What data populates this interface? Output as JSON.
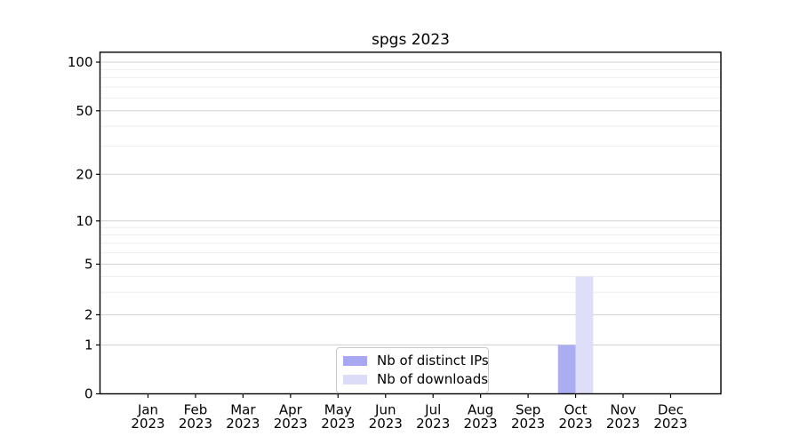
{
  "chart_data": {
    "type": "bar",
    "title": "spgs 2023",
    "categories": [
      "Jan",
      "Feb",
      "Mar",
      "Apr",
      "May",
      "Jun",
      "Jul",
      "Aug",
      "Sep",
      "Oct",
      "Nov",
      "Dec"
    ],
    "x_tick_year": "2023",
    "yticks": [
      0,
      1,
      2,
      5,
      10,
      20,
      50,
      100
    ],
    "ylim": [
      0,
      100
    ],
    "yscale": "symlog-like",
    "grid": "both-horizontal",
    "legend_position": "lower-center-inside",
    "series": [
      {
        "name": "Nb of distinct IPs",
        "color": "#a8a8f2",
        "values": [
          0,
          0,
          0,
          0,
          0,
          0,
          0,
          0,
          0,
          1,
          0,
          0
        ]
      },
      {
        "name": "Nb of downloads",
        "color": "#dcdcf8",
        "values": [
          0,
          0,
          0,
          0,
          0,
          0,
          0,
          0,
          0,
          4,
          0,
          0
        ]
      }
    ]
  }
}
